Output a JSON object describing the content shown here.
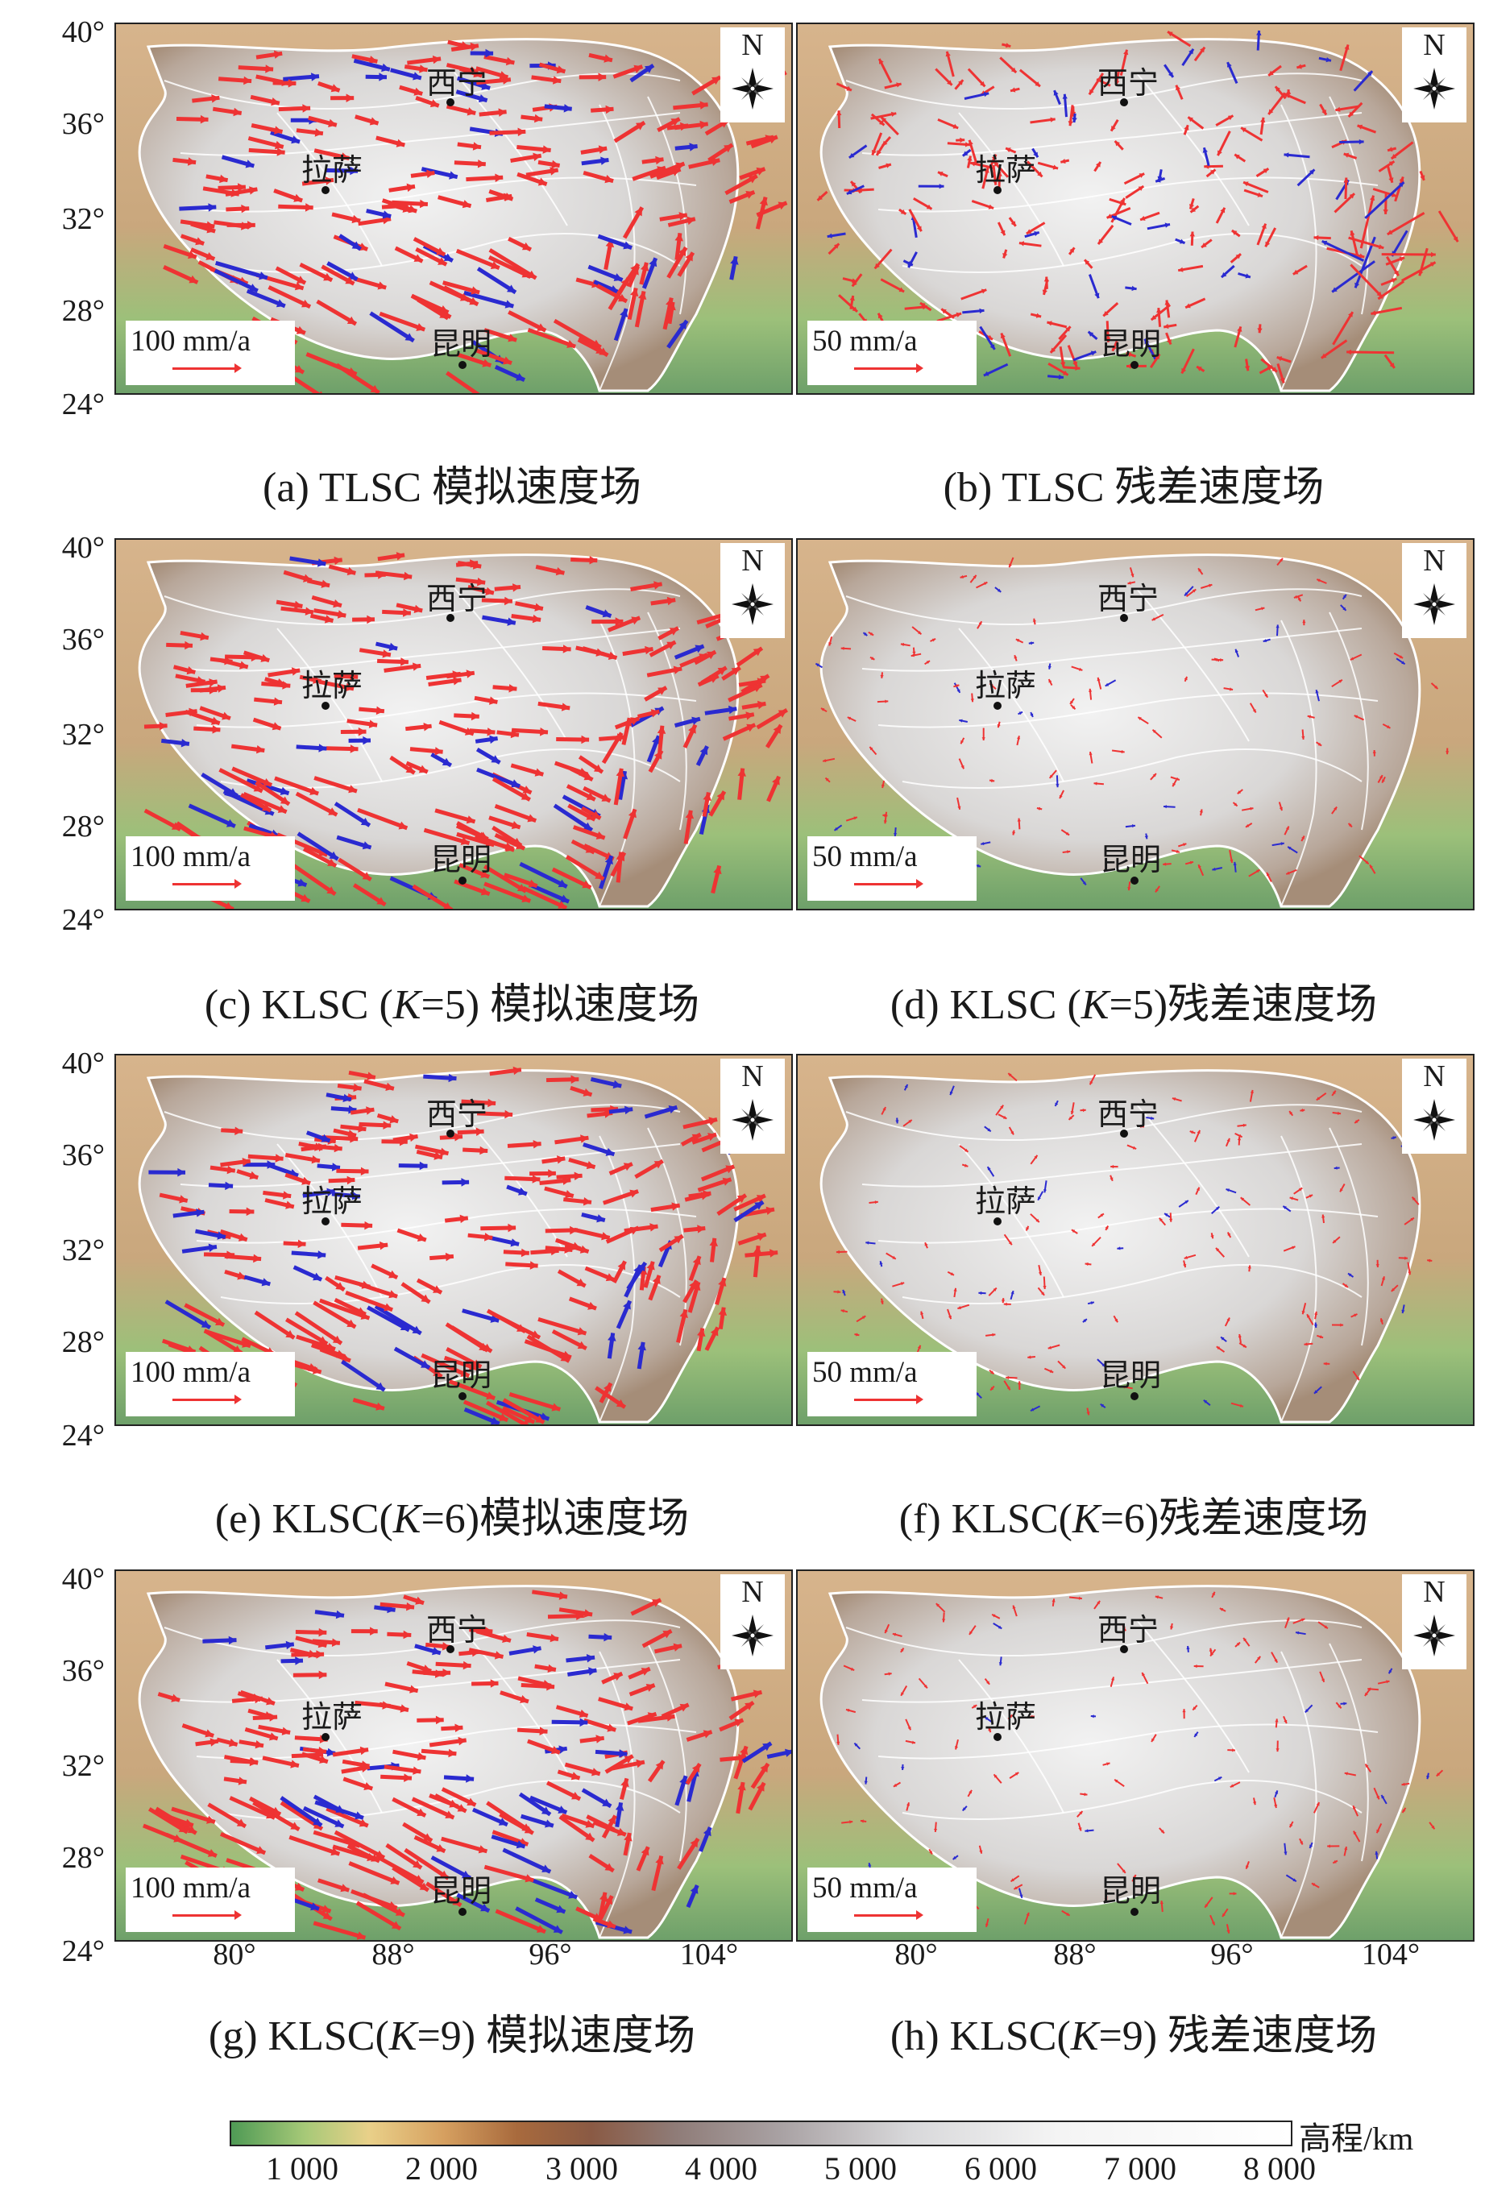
{
  "panels": [
    {
      "id": "a",
      "caption": "(a) TLSC 模拟速度场",
      "scale_label": "100 mm/a",
      "kind": "model"
    },
    {
      "id": "b",
      "caption": "(b) TLSC 残差速度场",
      "scale_label": "50 mm/a",
      "kind": "residual_large"
    },
    {
      "id": "c",
      "caption_pre": "(c) KLSC (",
      "caption_k": "K",
      "caption_post": "=5) 模拟速度场",
      "scale_label": "100 mm/a",
      "kind": "model"
    },
    {
      "id": "d",
      "caption_pre": "(d) KLSC (",
      "caption_k": "K",
      "caption_post": "=5)残差速度场",
      "scale_label": "50 mm/a",
      "kind": "residual_small"
    },
    {
      "id": "e",
      "caption_pre": "(e) KLSC(",
      "caption_k": "K",
      "caption_post": "=6)模拟速度场",
      "scale_label": "100 mm/a",
      "kind": "model"
    },
    {
      "id": "f",
      "caption_pre": "(f) KLSC(",
      "caption_k": "K",
      "caption_post": "=6)残差速度场",
      "scale_label": "50 mm/a",
      "kind": "residual_small"
    },
    {
      "id": "g",
      "caption_pre": "(g) KLSC(",
      "caption_k": "K",
      "caption_post": "=9) 模拟速度场",
      "scale_label": "100 mm/a",
      "kind": "model"
    },
    {
      "id": "h",
      "caption_pre": "(h) KLSC(",
      "caption_k": "K",
      "caption_post": "=9) 残差速度场",
      "scale_label": "50 mm/a",
      "kind": "residual_small"
    }
  ],
  "cities": {
    "xining": "西宁",
    "lhasa": "拉萨",
    "kunming": "昆明"
  },
  "north_label": "N",
  "lat_ticks": [
    "40°",
    "36°",
    "32°",
    "28°",
    "24°"
  ],
  "lon_ticks": [
    "80°",
    "88°",
    "96°",
    "104°"
  ],
  "colorbar": {
    "title": "高程/km",
    "ticks": [
      "1 000",
      "2 000",
      "3 000",
      "4 000",
      "5 000",
      "6 000",
      "7 000",
      "8 000"
    ]
  },
  "colors": {
    "arrow_main": "#ee3333",
    "arrow_alt": "#2a2ad0",
    "fault": "#ffffff"
  }
}
